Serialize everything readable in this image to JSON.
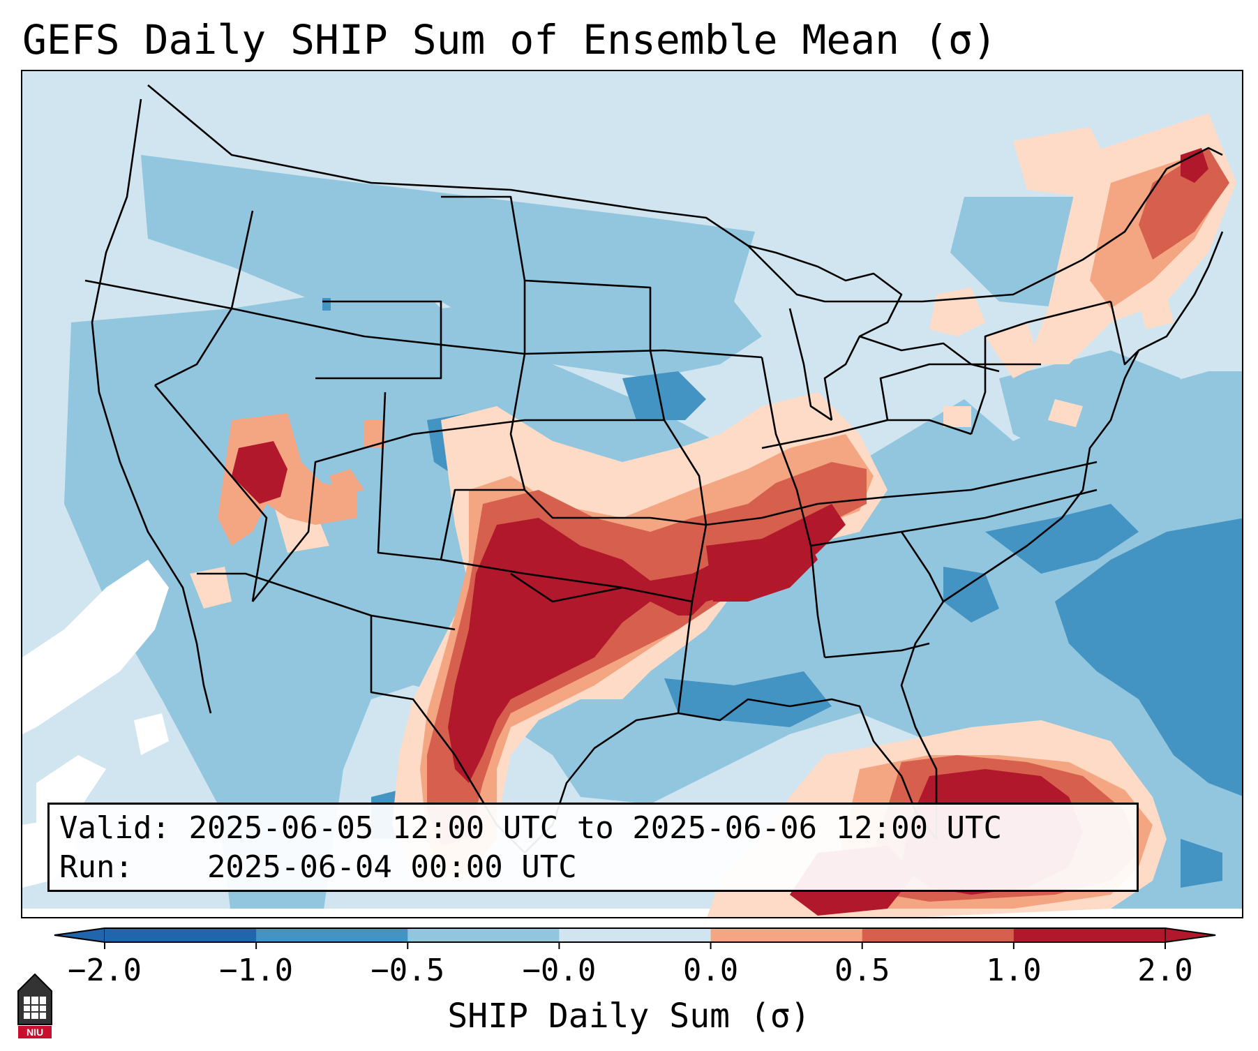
{
  "title": "GEFS Daily SHIP Sum of Ensemble Mean (σ)",
  "info": {
    "valid_label": "Valid:",
    "valid_value": "2025-06-05 12:00 UTC to 2025-06-06 12:00 UTC",
    "run_label": "Run:",
    "run_value": "2025-06-04 00:00 UTC"
  },
  "colorbar": {
    "label": "SHIP Daily Sum (σ)",
    "ticks": [
      "−2.0",
      "−1.0",
      "−0.5",
      "−0.0",
      "0.0",
      "0.5",
      "1.0",
      "2.0"
    ],
    "colors": [
      "#2166ac",
      "#4393c3",
      "#92c5de",
      "#d1e5f0",
      "#fddbc7",
      "#f4a582",
      "#d6604d",
      "#b2182b"
    ],
    "extend": "both"
  },
  "field_colors": {
    "ocean_background": "#d2e5f0",
    "land_edge": "#ffffff",
    "border": "#000000"
  },
  "logo": {
    "text": "NIU",
    "color": "#c8102e"
  }
}
